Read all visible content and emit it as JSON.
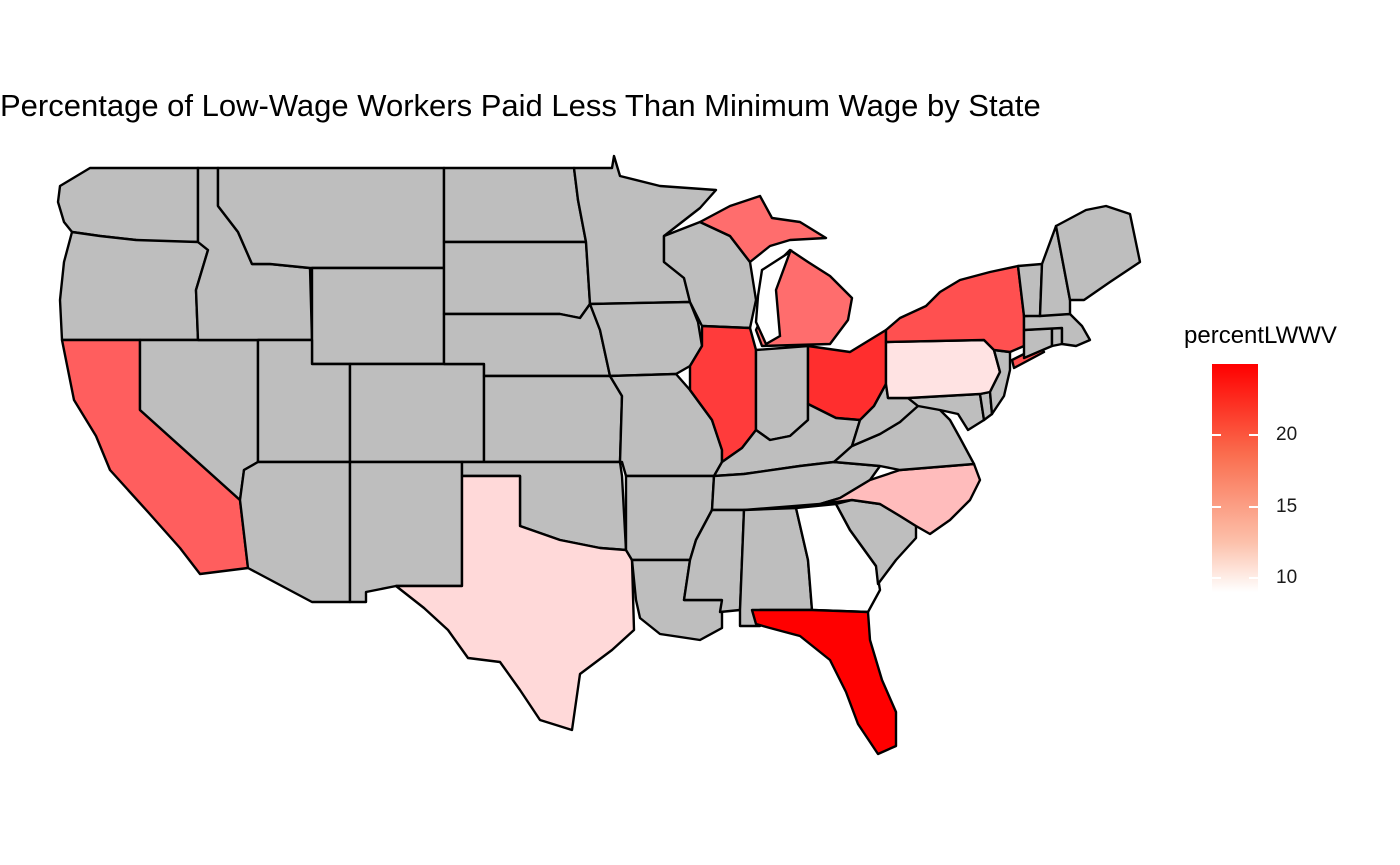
{
  "title": "Percentage of Low-Wage Workers Paid Less Than Minimum Wage by State",
  "legend": {
    "title": "percentLWWV",
    "min": 9,
    "max": 25,
    "ticks": [
      {
        "value": 10,
        "label": "10"
      },
      {
        "value": 15,
        "label": "15"
      },
      {
        "value": 20,
        "label": "20"
      }
    ],
    "low_color": "#ffffff",
    "high_color": "#ff0000",
    "na_color": "#bebebe"
  },
  "states": [
    {
      "id": "wa",
      "name": "Washington",
      "value": null
    },
    {
      "id": "or",
      "name": "Oregon",
      "value": null
    },
    {
      "id": "ca",
      "name": "California",
      "value": 18
    },
    {
      "id": "nv",
      "name": "Nevada",
      "value": null
    },
    {
      "id": "id",
      "name": "Idaho",
      "value": null
    },
    {
      "id": "mt",
      "name": "Montana",
      "value": null
    },
    {
      "id": "wy",
      "name": "Wyoming",
      "value": null
    },
    {
      "id": "ut",
      "name": "Utah",
      "value": null
    },
    {
      "id": "az",
      "name": "Arizona",
      "value": null
    },
    {
      "id": "co",
      "name": "Colorado",
      "value": null
    },
    {
      "id": "nm",
      "name": "New Mexico",
      "value": null
    },
    {
      "id": "nd",
      "name": "North Dakota",
      "value": null
    },
    {
      "id": "sd",
      "name": "South Dakota",
      "value": null
    },
    {
      "id": "ne",
      "name": "Nebraska",
      "value": null
    },
    {
      "id": "ks",
      "name": "Kansas",
      "value": null
    },
    {
      "id": "ok",
      "name": "Oklahoma",
      "value": null
    },
    {
      "id": "tx",
      "name": "Texas",
      "value": 10.5
    },
    {
      "id": "mn",
      "name": "Minnesota",
      "value": null
    },
    {
      "id": "ia",
      "name": "Iowa",
      "value": null
    },
    {
      "id": "mo",
      "name": "Missouri",
      "value": null
    },
    {
      "id": "ar",
      "name": "Arkansas",
      "value": null
    },
    {
      "id": "la",
      "name": "Louisiana",
      "value": null
    },
    {
      "id": "wi",
      "name": "Wisconsin",
      "value": null
    },
    {
      "id": "il",
      "name": "Illinois",
      "value": 20.5
    },
    {
      "id": "mi",
      "name": "Michigan",
      "value": 17
    },
    {
      "id": "in",
      "name": "Indiana",
      "value": null
    },
    {
      "id": "oh",
      "name": "Ohio",
      "value": 21.5
    },
    {
      "id": "ky",
      "name": "Kentucky",
      "value": null
    },
    {
      "id": "tn",
      "name": "Tennessee",
      "value": null
    },
    {
      "id": "ms",
      "name": "Mississippi",
      "value": null
    },
    {
      "id": "al",
      "name": "Alabama",
      "value": null
    },
    {
      "id": "ga",
      "name": "Georgia",
      "value": 9
    },
    {
      "id": "fl",
      "name": "Florida",
      "value": 25
    },
    {
      "id": "sc",
      "name": "South Carolina",
      "value": null
    },
    {
      "id": "nc",
      "name": "North Carolina",
      "value": 12
    },
    {
      "id": "va",
      "name": "Virginia",
      "value": null
    },
    {
      "id": "wv",
      "name": "West Virginia",
      "value": null
    },
    {
      "id": "md",
      "name": "Maryland",
      "value": null
    },
    {
      "id": "de",
      "name": "Delaware",
      "value": null
    },
    {
      "id": "pa",
      "name": "Pennsylvania",
      "value": 10
    },
    {
      "id": "nj",
      "name": "New Jersey",
      "value": null
    },
    {
      "id": "ny",
      "name": "New York",
      "value": 19
    },
    {
      "id": "ct",
      "name": "Connecticut",
      "value": null
    },
    {
      "id": "ri",
      "name": "Rhode Island",
      "value": null
    },
    {
      "id": "ma",
      "name": "Massachusetts",
      "value": null
    },
    {
      "id": "vt",
      "name": "Vermont",
      "value": null
    },
    {
      "id": "nh",
      "name": "New Hampshire",
      "value": null
    },
    {
      "id": "me",
      "name": "Maine",
      "value": null
    }
  ]
}
